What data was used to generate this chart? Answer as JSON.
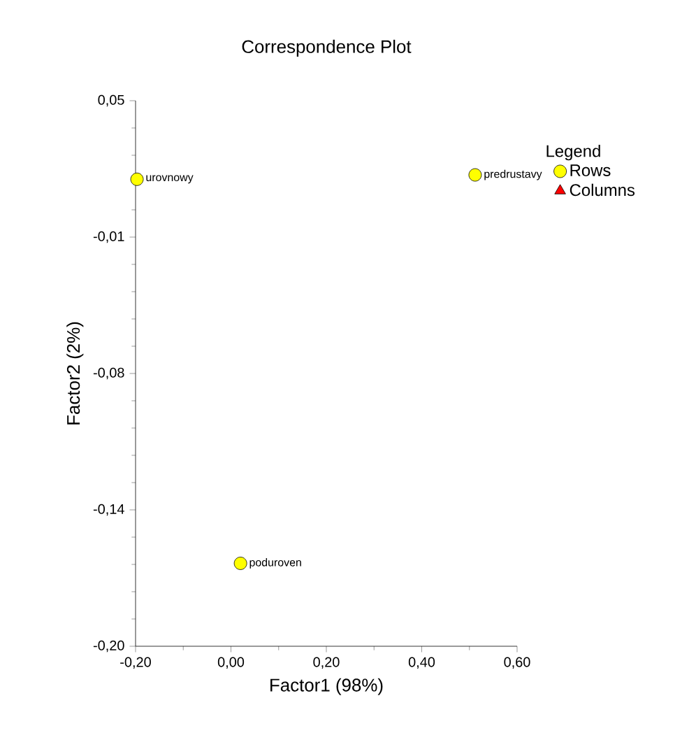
{
  "chart_data": {
    "type": "scatter",
    "title": "Correspondence Plot",
    "xlabel": "Factor1 (98%)",
    "ylabel": "Factor2 (2%)",
    "legend_title": "Legend",
    "series": [
      {
        "name": "Rows",
        "color": "#ffff00",
        "marker": "circle",
        "x": [
          -0.197,
          0.512,
          0.02
        ],
        "values": [
          0.014,
          0.016,
          -0.162
        ]
      },
      {
        "name": "Columns",
        "color": "#ff0000",
        "marker": "triangle"
      }
    ],
    "annotations": [
      {
        "text": "urovnowy",
        "x": -0.197,
        "y": 0.014
      },
      {
        "text": "predrustavy",
        "x": 0.512,
        "y": 0.016
      },
      {
        "text": "poduroven",
        "x": 0.02,
        "y": -0.162
      }
    ],
    "xlim": [
      -0.2,
      0.6
    ],
    "ylim": [
      -0.2,
      0.05
    ],
    "xticks": [
      {
        "value": -0.2,
        "label": "-0,20"
      },
      {
        "value": 0.0,
        "label": "0,00"
      },
      {
        "value": 0.2,
        "label": "0,20"
      },
      {
        "value": 0.4,
        "label": "0,40"
      },
      {
        "value": 0.6,
        "label": "0,60"
      }
    ],
    "yticks": [
      {
        "value": -0.2,
        "label": "-0,20"
      },
      {
        "value": -0.1375,
        "label": "-0,14"
      },
      {
        "value": -0.075,
        "label": "-0,08"
      },
      {
        "value": -0.0125,
        "label": "-0,01"
      },
      {
        "value": 0.05,
        "label": "0,05"
      }
    ],
    "legend": "top right",
    "grid": false
  }
}
